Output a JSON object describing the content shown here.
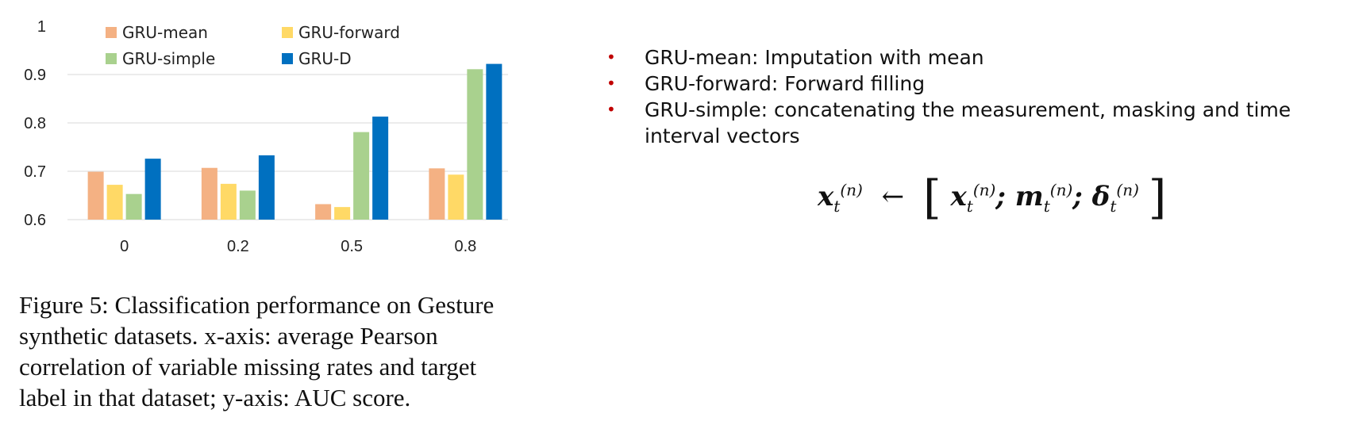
{
  "chart_data": {
    "type": "bar",
    "categories": [
      "0",
      "0.2",
      "0.5",
      "0.8"
    ],
    "series": [
      {
        "name": "GRU-mean",
        "color": "#f4b183",
        "values": [
          0.699,
          0.707,
          0.632,
          0.706
        ]
      },
      {
        "name": "GRU-forward",
        "color": "#ffd966",
        "values": [
          0.672,
          0.674,
          0.626,
          0.693
        ]
      },
      {
        "name": "GRU-simple",
        "color": "#a9d18e",
        "values": [
          0.653,
          0.66,
          0.781,
          0.911
        ]
      },
      {
        "name": "GRU-D",
        "color": "#0070c0",
        "values": [
          0.726,
          0.733,
          0.813,
          0.922
        ]
      }
    ],
    "yticks": [
      "1",
      "0.9",
      "0.8",
      "0.7",
      "0.6"
    ],
    "ylim": [
      0.6,
      1.0
    ],
    "grid": true,
    "legend_position": "top-left"
  },
  "caption": "Figure 5: Classification performance on Gesture synthetic datasets. x-axis: average Pearson correlation of variable missing rates and target label in that dataset; y-axis: AUC score.",
  "bullets": [
    "GRU-mean: Imputation with mean",
    "GRU-forward: Forward filling",
    "GRU-simple: concatenating the measurement, masking and time interval vectors"
  ],
  "bullet_symbol": "•",
  "formula": {
    "x": "x",
    "m": "m",
    "delta": "δ",
    "sub": "t",
    "sup": "(n)",
    "arrow": "←",
    "sep": ";",
    "lbracket": "[",
    "rbracket": "]"
  }
}
